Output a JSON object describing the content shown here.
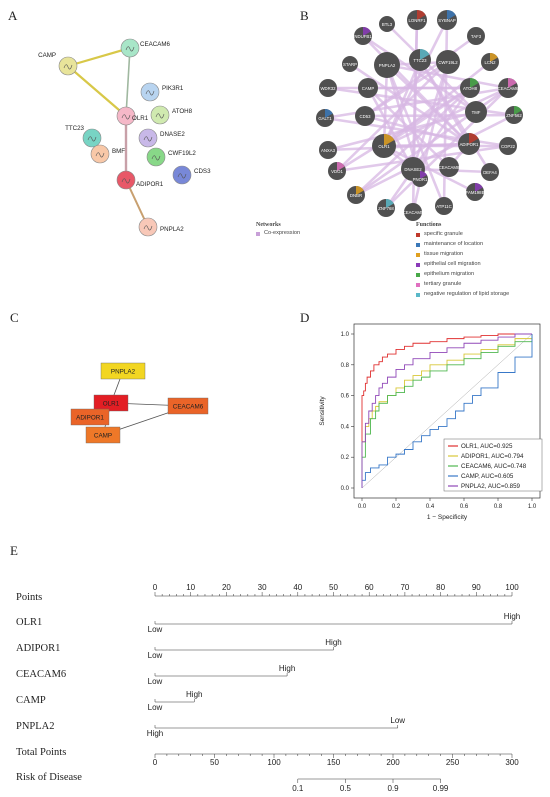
{
  "panels": {
    "A": "A",
    "B": "B",
    "C": "C",
    "D": "D",
    "E": "E"
  },
  "panel_a": {
    "nodes": [
      {
        "label": "CAMP",
        "color": "#e8e49a"
      },
      {
        "label": "CEACAM6",
        "color": "#a8e6c8"
      },
      {
        "label": "PIK3R1",
        "color": "#b8d4f0"
      },
      {
        "label": "OLR1",
        "color": "#f5b8c8"
      },
      {
        "label": "ATOH8",
        "color": "#d0eab0"
      },
      {
        "label": "TTC23",
        "color": "#78d4c4"
      },
      {
        "label": "DNASE2",
        "color": "#c8b8e8"
      },
      {
        "label": "BMF",
        "color": "#f8c8a8"
      },
      {
        "label": "CWF19L2",
        "color": "#88d888"
      },
      {
        "label": "ADIPOR1",
        "color": "#e85868"
      },
      {
        "label": "CDS3",
        "color": "#7888d8"
      },
      {
        "label": "PNPLA2",
        "color": "#f8c8b8"
      }
    ]
  },
  "panel_b": {
    "nodes": [
      "LONRF1",
      "SYBNAP",
      "BTL3",
      "NDUFB1",
      "TAF3",
      "PNPLA2",
      "TTC23",
      "CWF19L2",
      "STARP",
      "LCN2",
      "CAMP",
      "ATOH8",
      "CEACAM6",
      "WDR32",
      "CD53",
      "GALT1",
      "OLR1",
      "TMF",
      "ZNF562",
      "ANXA3",
      "COP22",
      "ADIPOR1",
      "DNASE2",
      "CEACAM8",
      "PNOR1",
      "DEFA4",
      "VDO1",
      "ZNF768",
      "ATP11C",
      "CEACAM5",
      "DNBR",
      "FAM198B"
    ],
    "networks_title": "Networks",
    "networks": [
      {
        "label": "Co-expression",
        "color": "#c8a0d8"
      }
    ],
    "functions_title": "Functions",
    "functions": [
      {
        "label": "specific granule",
        "color": "#c0392b"
      },
      {
        "label": "maintenance of location",
        "color": "#3a78b8"
      },
      {
        "label": "tissue migration",
        "color": "#e0a020"
      },
      {
        "label": "epithelial cell migration",
        "color": "#8a3ab8"
      },
      {
        "label": "epithelium migration",
        "color": "#48a848"
      },
      {
        "label": "tertiary granule",
        "color": "#e070c0"
      },
      {
        "label": "negative regulation of lipid storage",
        "color": "#5ab8c8"
      }
    ]
  },
  "panel_c": {
    "nodes": [
      {
        "label": "PNPLA2",
        "color": "#f2d622"
      },
      {
        "label": "OLR1",
        "color": "#e31e24"
      },
      {
        "label": "ADIPOR1",
        "color": "#ea6428"
      },
      {
        "label": "CEACAM6",
        "color": "#ea6428"
      },
      {
        "label": "CAMP",
        "color": "#ee7828"
      }
    ]
  },
  "chart_data": {
    "type": "line",
    "xlabel": "1 − Specificity",
    "ylabel": "Sensitivity",
    "xlim": [
      0,
      1
    ],
    "ylim": [
      0,
      1
    ],
    "xticks": [
      "0.0",
      "0.2",
      "0.4",
      "0.6",
      "0.8",
      "1.0"
    ],
    "yticks": [
      "0.0",
      "0.2",
      "0.4",
      "0.6",
      "0.8",
      "1.0"
    ],
    "legend_position": "bottom-right",
    "series": [
      {
        "name": "OLR1, AUC=0.925",
        "color": "#e03030",
        "x": [
          0,
          0,
          0.01,
          0.02,
          0.03,
          0.05,
          0.07,
          0.1,
          0.12,
          0.15,
          0.2,
          0.25,
          0.3,
          0.4,
          0.5,
          0.6,
          0.7,
          0.8,
          0.9,
          1.0
        ],
        "y": [
          0,
          0.6,
          0.63,
          0.68,
          0.72,
          0.76,
          0.8,
          0.82,
          0.85,
          0.87,
          0.9,
          0.92,
          0.94,
          0.95,
          0.97,
          0.98,
          0.99,
          1.0,
          1.0,
          1.0
        ]
      },
      {
        "name": "ADIPOR1, AUC=0.794",
        "color": "#d8c838",
        "x": [
          0,
          0,
          0.02,
          0.04,
          0.06,
          0.08,
          0.1,
          0.15,
          0.2,
          0.25,
          0.3,
          0.35,
          0.4,
          0.5,
          0.6,
          0.7,
          0.8,
          0.9,
          1.0
        ],
        "y": [
          0,
          0.3,
          0.4,
          0.45,
          0.5,
          0.53,
          0.56,
          0.6,
          0.65,
          0.7,
          0.73,
          0.76,
          0.8,
          0.83,
          0.87,
          0.9,
          0.93,
          0.97,
          1.0
        ]
      },
      {
        "name": "CEACAM6, AUC=0.748",
        "color": "#50b850",
        "x": [
          0,
          0,
          0.02,
          0.05,
          0.08,
          0.1,
          0.15,
          0.2,
          0.25,
          0.3,
          0.35,
          0.4,
          0.5,
          0.6,
          0.7,
          0.8,
          0.9,
          1.0
        ],
        "y": [
          0,
          0.2,
          0.35,
          0.45,
          0.5,
          0.55,
          0.6,
          0.62,
          0.66,
          0.7,
          0.72,
          0.76,
          0.8,
          0.84,
          0.88,
          0.92,
          0.95,
          1.0
        ]
      },
      {
        "name": "CAMP, AUC=0.605",
        "color": "#3878c8",
        "x": [
          0,
          0,
          0.02,
          0.05,
          0.1,
          0.15,
          0.2,
          0.25,
          0.3,
          0.35,
          0.4,
          0.45,
          0.5,
          0.55,
          0.6,
          0.65,
          0.7,
          0.8,
          0.9,
          1.0
        ],
        "y": [
          0,
          0.05,
          0.1,
          0.13,
          0.15,
          0.2,
          0.22,
          0.25,
          0.3,
          0.34,
          0.38,
          0.4,
          0.45,
          0.5,
          0.55,
          0.6,
          0.65,
          0.75,
          0.85,
          1.0
        ]
      },
      {
        "name": "PNPLA2, AUC=0.859",
        "color": "#9048b8",
        "x": [
          0,
          0,
          0.02,
          0.04,
          0.06,
          0.08,
          0.1,
          0.12,
          0.15,
          0.2,
          0.25,
          0.3,
          0.4,
          0.5,
          0.6,
          0.7,
          0.8,
          0.9,
          1.0
        ],
        "y": [
          0,
          0.3,
          0.42,
          0.5,
          0.55,
          0.6,
          0.65,
          0.68,
          0.72,
          0.77,
          0.8,
          0.84,
          0.88,
          0.91,
          0.94,
          0.96,
          0.98,
          1.0,
          1.0
        ]
      }
    ]
  },
  "nomogram": {
    "points_label": "Points",
    "points_ticks": [
      "0",
      "10",
      "20",
      "30",
      "40",
      "50",
      "60",
      "70",
      "80",
      "90",
      "100"
    ],
    "rows": [
      {
        "label": "OLR1",
        "low": "Low",
        "high": "High",
        "max_points": 100
      },
      {
        "label": "ADIPOR1",
        "low": "Low",
        "high": "High",
        "max_points": 50
      },
      {
        "label": "CEACAM6",
        "low": "Low",
        "high": "High",
        "max_points": 37
      },
      {
        "label": "CAMP",
        "low": "Low",
        "high": "High",
        "max_points": 11
      },
      {
        "label": "PNPLA2",
        "low": "High",
        "high": "Low",
        "max_points": 68
      }
    ],
    "total_label": "Total Points",
    "total_ticks": [
      "0",
      "50",
      "100",
      "150",
      "200",
      "250",
      "300"
    ],
    "risk_label": "Risk of Disease",
    "risk_ticks": [
      {
        "label": "0.1",
        "total": 120
      },
      {
        "label": "0.5",
        "total": 160
      },
      {
        "label": "0.9",
        "total": 200
      },
      {
        "label": "0.99",
        "total": 240
      }
    ]
  }
}
